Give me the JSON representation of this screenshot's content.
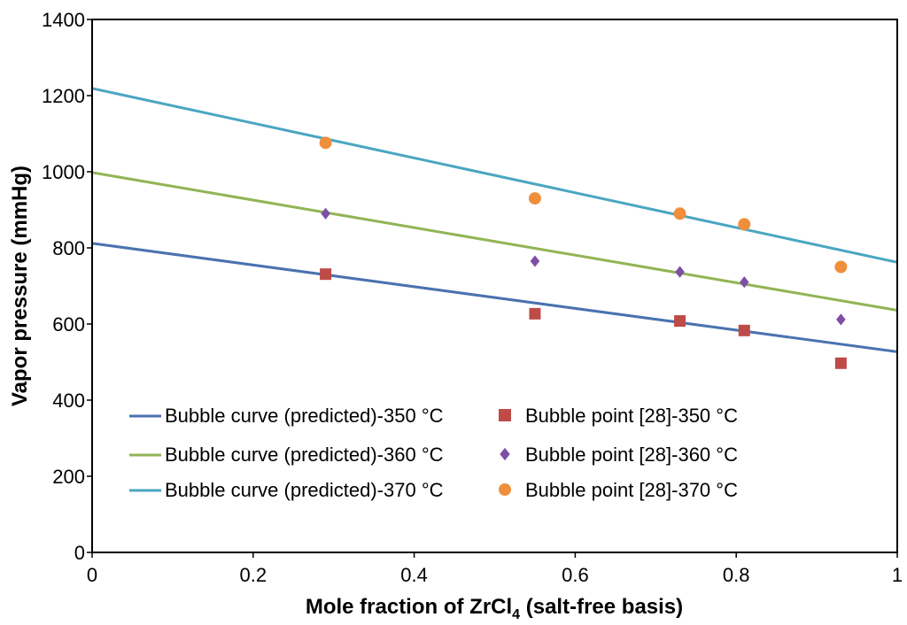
{
  "chart_data": {
    "type": "scatter",
    "title": "",
    "xlabel": "Mole fraction of ZrCl",
    "xlabel_subscript": "4",
    "xlabel_suffix": " (salt-free basis)",
    "ylabel": "Vapor pressure (mmHg)",
    "xlim": [
      0,
      1
    ],
    "ylim": [
      0,
      1400
    ],
    "xticks": [
      0,
      0.2,
      0.4,
      0.6,
      0.8,
      1
    ],
    "xtick_labels": [
      "0",
      "0.2",
      "0.4",
      "0.6",
      "0.8",
      "1"
    ],
    "yticks": [
      0,
      200,
      400,
      600,
      800,
      1000,
      1200,
      1400
    ],
    "ytick_labels": [
      "0",
      "200",
      "400",
      "600",
      "800",
      "1000",
      "1200",
      "1400"
    ],
    "grid": false,
    "legend_position": "bottom-left",
    "lines": [
      {
        "name": "Bubble curve (predicted)-350 °C",
        "color": "#4a72b0",
        "x": [
          0,
          1
        ],
        "y": [
          812,
          527
        ]
      },
      {
        "name": "Bubble curve (predicted)-360 °C",
        "color": "#92b454",
        "x": [
          0,
          1
        ],
        "y": [
          998,
          636
        ]
      },
      {
        "name": "Bubble curve (predicted)-370 °C",
        "color": "#4aa6c1",
        "x": [
          0,
          1
        ],
        "y": [
          1219,
          762
        ]
      }
    ],
    "points": [
      {
        "name": "Bubble point [28]-350 °C",
        "color": "#be4b48",
        "marker": "square",
        "x": [
          0.29,
          0.55,
          0.73,
          0.81,
          0.93
        ],
        "y": [
          731,
          627,
          608,
          583,
          497
        ]
      },
      {
        "name": "Bubble point [28]-360 °C",
        "color": "#7d4fa5",
        "marker": "diamond",
        "x": [
          0.29,
          0.55,
          0.73,
          0.81,
          0.93
        ],
        "y": [
          890,
          765,
          737,
          710,
          612
        ]
      },
      {
        "name": "Bubble point [28]-370 °C",
        "color": "#ef8f3c",
        "marker": "circle",
        "x": [
          0.29,
          0.55,
          0.73,
          0.81,
          0.93
        ],
        "y": [
          1076,
          930,
          890,
          862,
          750
        ]
      }
    ]
  }
}
